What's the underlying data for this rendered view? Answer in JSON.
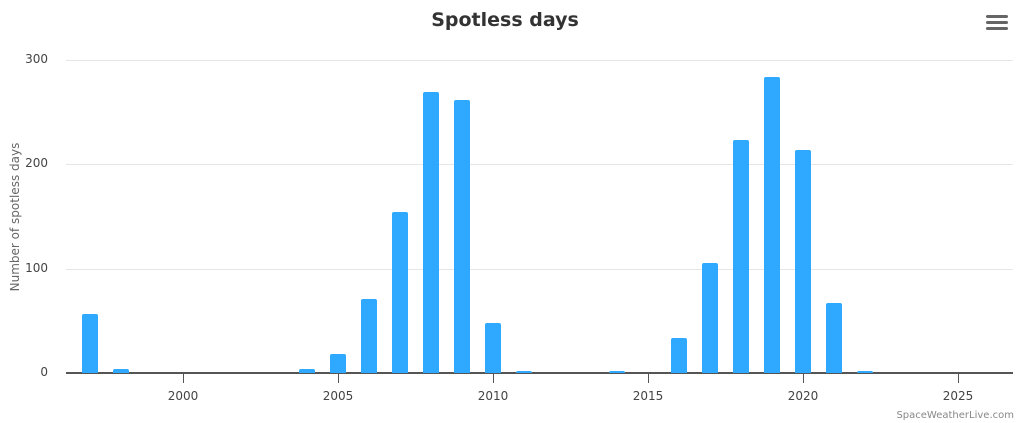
{
  "header": {
    "title": "Spotless days",
    "menu_icon": "hamburger-menu-icon"
  },
  "colors": {
    "bar": "#2ea9ff",
    "axis": "#555555",
    "grid": "#e6e6e6"
  },
  "credit": "SpaceWeatherLive.com",
  "chart_data": {
    "type": "bar",
    "title": "Spotless days",
    "xlabel": "",
    "ylabel": "Number of spotless days",
    "ylim": [
      0,
      300
    ],
    "yticks": [
      0,
      100,
      200,
      300
    ],
    "xticks": [
      2000,
      2005,
      2010,
      2015,
      2020,
      2025
    ],
    "grid": true,
    "legend": false,
    "categories": [
      1997,
      1998,
      1999,
      2000,
      2001,
      2002,
      2003,
      2004,
      2005,
      2006,
      2007,
      2008,
      2009,
      2010,
      2011,
      2012,
      2013,
      2014,
      2015,
      2016,
      2017,
      2018,
      2019,
      2020,
      2021,
      2022,
      2023,
      2024,
      2025
    ],
    "values": [
      57,
      4,
      0,
      0,
      0,
      0,
      0,
      4,
      18,
      71,
      154,
      269,
      262,
      48,
      2,
      0,
      0,
      1,
      0,
      34,
      105,
      223,
      284,
      214,
      67,
      1,
      0,
      0,
      0
    ]
  }
}
